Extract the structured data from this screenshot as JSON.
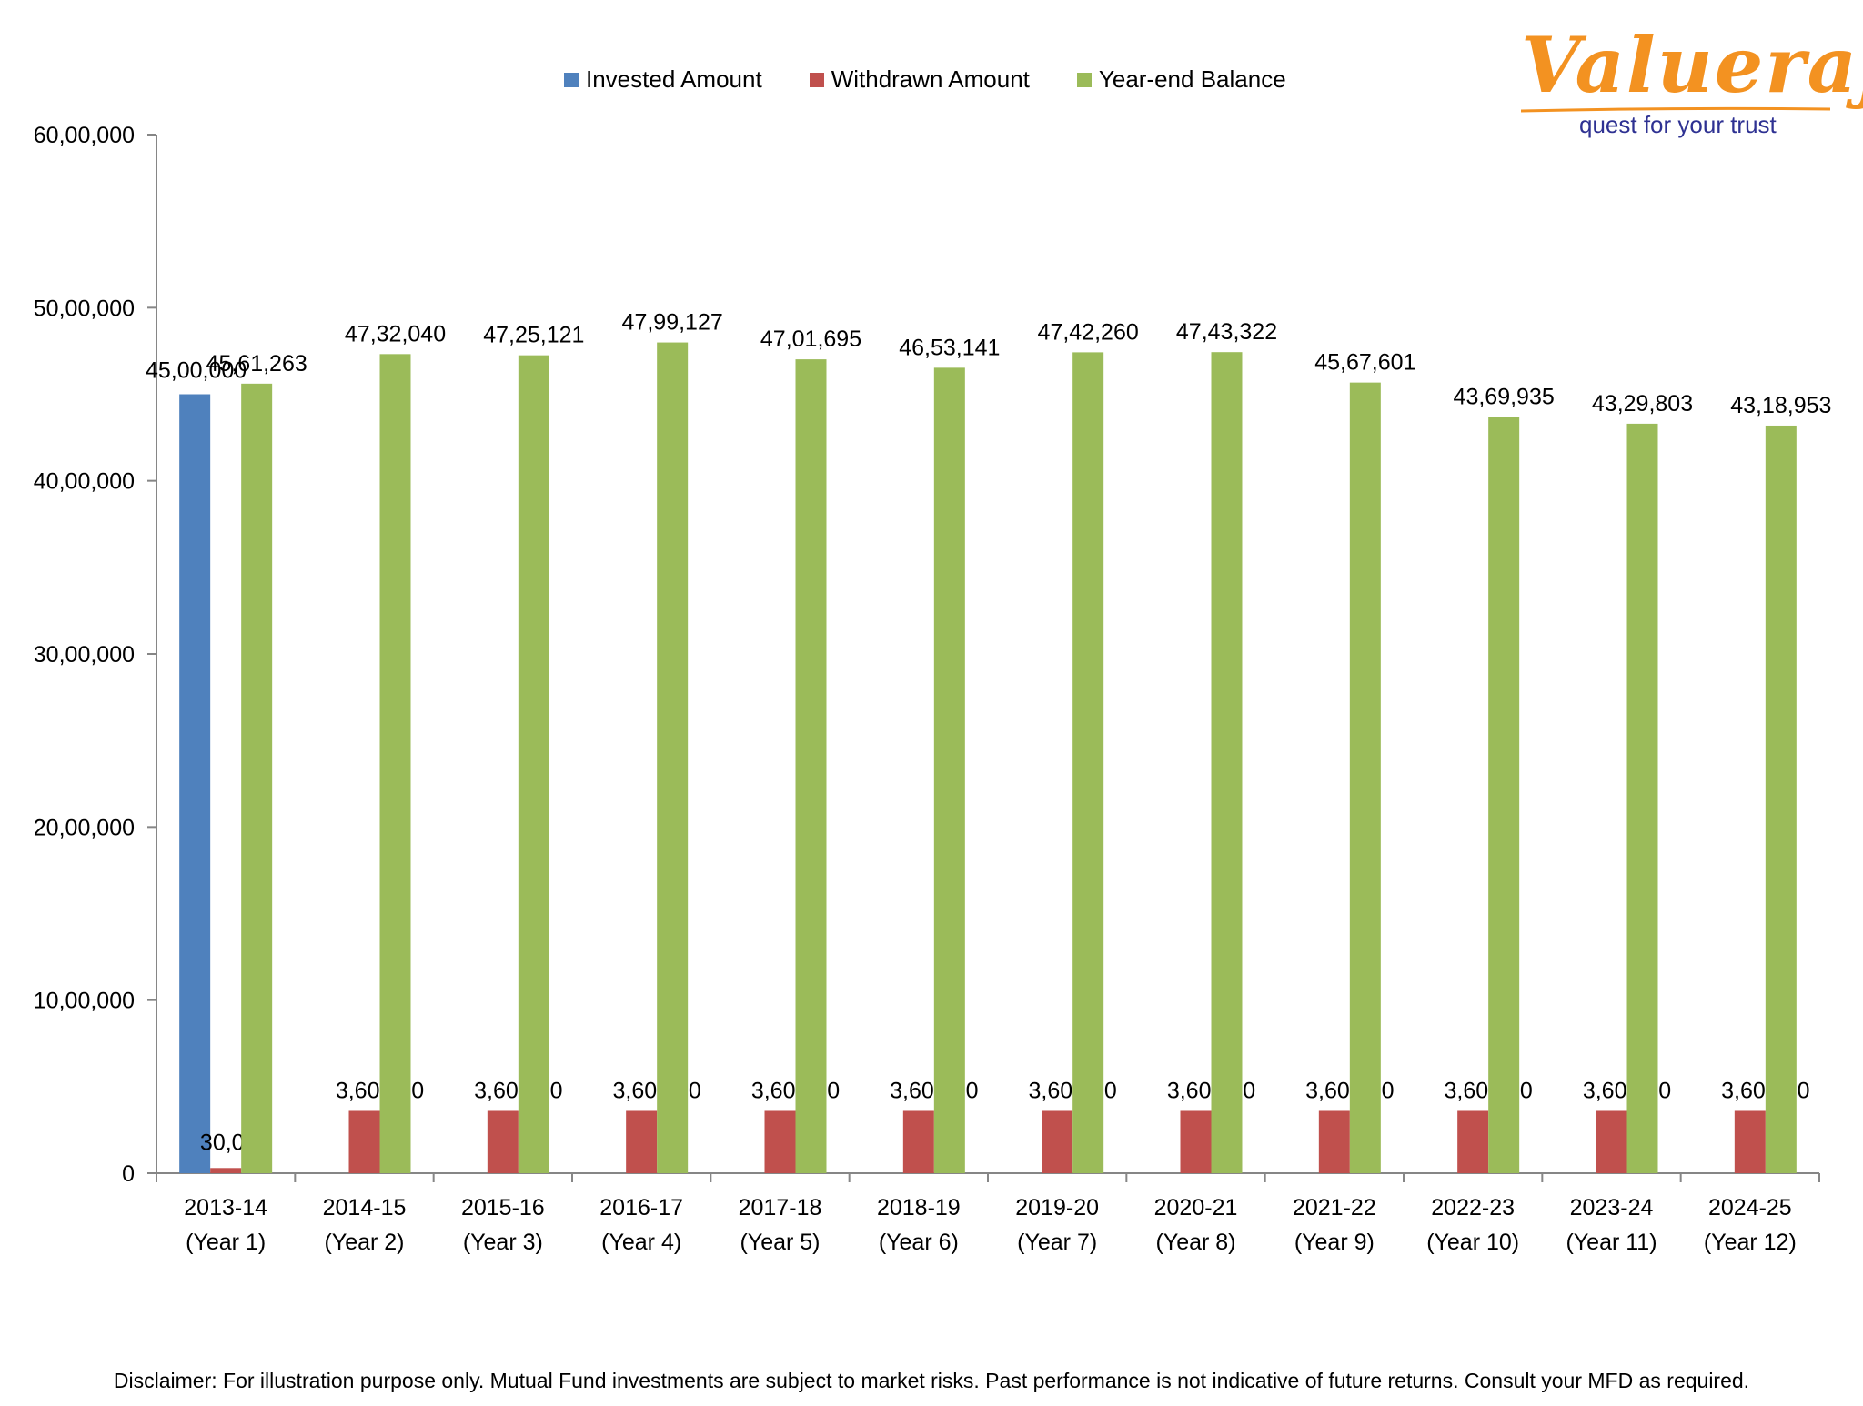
{
  "legend": [
    {
      "name": "Invested Amount",
      "color": "#4f81bd"
    },
    {
      "name": "Withdrawn Amount",
      "color": "#c0504d"
    },
    {
      "name": "Year-end Balance",
      "color": "#9bbb59"
    }
  ],
  "logo": {
    "word": "Valueraj",
    "tagline": "quest for your trust"
  },
  "disclaimer": "Disclaimer: For illustration purpose only. Mutual Fund investments are subject to market risks. Past performance is not indicative of future returns. Consult your MFD as required.",
  "chart_data": {
    "type": "bar",
    "categories": [
      [
        "2013-14",
        "(Year 1)"
      ],
      [
        "2014-15",
        "(Year 2)"
      ],
      [
        "2015-16",
        "(Year 3)"
      ],
      [
        "2016-17",
        "(Year 4)"
      ],
      [
        "2017-18",
        "(Year 5)"
      ],
      [
        "2018-19",
        "(Year 6)"
      ],
      [
        "2019-20",
        "(Year 7)"
      ],
      [
        "2020-21",
        "(Year 8)"
      ],
      [
        "2021-22",
        "(Year 9)"
      ],
      [
        "2022-23",
        "(Year 10)"
      ],
      [
        "2023-24",
        "(Year 11)"
      ],
      [
        "2024-25",
        "(Year 12)"
      ]
    ],
    "series": [
      {
        "name": "Invested Amount",
        "color": "#4f81bd",
        "values": [
          4500000,
          null,
          null,
          null,
          null,
          null,
          null,
          null,
          null,
          null,
          null,
          null
        ],
        "labels": [
          "45,00,000",
          "",
          "",
          "",
          "",
          "",
          "",
          "",
          "",
          "",
          "",
          ""
        ]
      },
      {
        "name": "Withdrawn Amount",
        "color": "#c0504d",
        "values": [
          30000,
          360000,
          360000,
          360000,
          360000,
          360000,
          360000,
          360000,
          360000,
          360000,
          360000,
          360000
        ],
        "labels": [
          "30,000",
          "3,60,000",
          "3,60,000",
          "3,60,000",
          "3,60,000",
          "3,60,000",
          "3,60,000",
          "3,60,000",
          "3,60,000",
          "3,60,000",
          "3,60,000",
          "3,60,000"
        ]
      },
      {
        "name": "Year-end Balance",
        "color": "#9bbb59",
        "values": [
          4561263,
          4732040,
          4725121,
          4799127,
          4701695,
          4653141,
          4742260,
          4743322,
          4567601,
          4369935,
          4329803,
          4318953
        ],
        "labels": [
          "45,61,263",
          "47,32,040",
          "47,25,121",
          "47,99,127",
          "47,01,695",
          "46,53,141",
          "47,42,260",
          "47,43,322",
          "45,67,601",
          "43,69,935",
          "43,29,803",
          "43,18,953"
        ]
      }
    ],
    "ylim": [
      0,
      6000000
    ],
    "yticks": [
      0,
      1000000,
      2000000,
      3000000,
      4000000,
      5000000,
      6000000
    ],
    "ytick_labels": [
      "0",
      "10,00,000",
      "20,00,000",
      "30,00,000",
      "40,00,000",
      "50,00,000",
      "60,00,000"
    ],
    "grid": false,
    "legend_position": "top"
  }
}
